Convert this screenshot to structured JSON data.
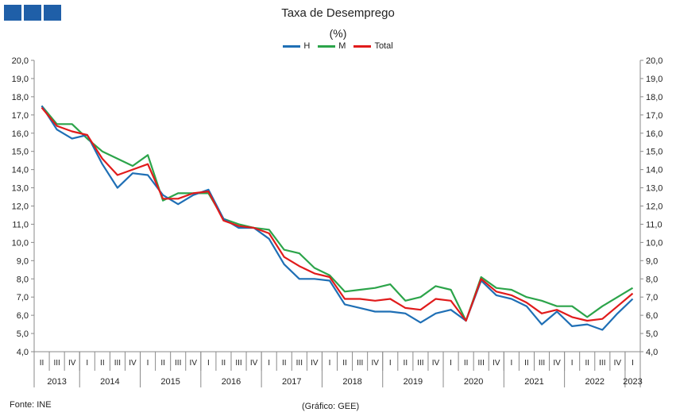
{
  "title": "Taxa de Desemprego",
  "subtitle": "(%)",
  "source": "Fonte: INE",
  "credit": "(Gráfico: GEE)",
  "colors": {
    "H": "#1f6fb5",
    "M": "#2ca44a",
    "Total": "#e01b1b",
    "axis": "#8a8a8a",
    "logo": "#1f5fa8"
  },
  "chart_data": {
    "type": "line",
    "title": "Taxa de Desemprego",
    "subtitle": "(%)",
    "ylim": [
      4.0,
      20.0
    ],
    "ytick_step": 1.0,
    "yticks_both_sides": true,
    "grid": false,
    "legend_position": "top-center",
    "x": [
      "2013 II",
      "2013 III",
      "2013 IV",
      "2014 I",
      "2014 II",
      "2014 III",
      "2014 IV",
      "2015 I",
      "2015 II",
      "2015 III",
      "2015 IV",
      "2016 I",
      "2016 II",
      "2016 III",
      "2016 IV",
      "2017 I",
      "2017 II",
      "2017 III",
      "2017 IV",
      "2018 I",
      "2018 II",
      "2018 III",
      "2018 IV",
      "2019 I",
      "2019 II",
      "2019 III",
      "2019 IV",
      "2020 I",
      "2020 II",
      "2020 III",
      "2020 IV",
      "2021 I",
      "2021 II",
      "2021 III",
      "2021 IV",
      "2022 I",
      "2022 II",
      "2022 III",
      "2022 IV",
      "2023 I"
    ],
    "quarter_labels": [
      "II",
      "III",
      "IV",
      "I",
      "II",
      "III",
      "IV",
      "I",
      "II",
      "III",
      "IV",
      "I",
      "II",
      "III",
      "IV",
      "I",
      "II",
      "III",
      "IV",
      "I",
      "II",
      "III",
      "IV",
      "I",
      "II",
      "III",
      "IV",
      "I",
      "II",
      "III",
      "IV",
      "I",
      "II",
      "III",
      "IV",
      "I",
      "II",
      "III",
      "IV",
      "I"
    ],
    "years": [
      "2013",
      "2014",
      "2015",
      "2016",
      "2017",
      "2018",
      "2019",
      "2020",
      "2021",
      "2022",
      "2023"
    ],
    "series": [
      {
        "name": "H",
        "values": [
          17.5,
          16.2,
          15.7,
          15.9,
          14.3,
          13.0,
          13.8,
          13.7,
          12.6,
          12.1,
          12.6,
          12.9,
          11.3,
          10.8,
          10.8,
          10.2,
          8.8,
          8.0,
          8.0,
          7.9,
          6.6,
          6.4,
          6.2,
          6.2,
          6.1,
          5.6,
          6.1,
          6.3,
          5.7,
          7.9,
          7.1,
          6.9,
          6.5,
          5.5,
          6.2,
          5.4,
          5.5,
          5.2,
          6.1,
          6.9
        ]
      },
      {
        "name": "M",
        "values": [
          17.5,
          16.5,
          16.5,
          15.7,
          15.0,
          14.6,
          14.2,
          14.8,
          12.3,
          12.7,
          12.7,
          12.7,
          11.3,
          11.0,
          10.8,
          10.7,
          9.6,
          9.4,
          8.6,
          8.2,
          7.3,
          7.4,
          7.5,
          7.7,
          6.8,
          7.0,
          7.6,
          7.4,
          5.7,
          8.1,
          7.5,
          7.4,
          7.0,
          6.8,
          6.5,
          6.5,
          5.9,
          6.5,
          7.0,
          7.5
        ]
      },
      {
        "name": "Total",
        "values": [
          17.4,
          16.4,
          16.1,
          15.9,
          14.6,
          13.7,
          14.0,
          14.3,
          12.4,
          12.4,
          12.7,
          12.8,
          11.2,
          10.9,
          10.8,
          10.5,
          9.2,
          8.7,
          8.3,
          8.1,
          6.9,
          6.9,
          6.8,
          6.9,
          6.4,
          6.3,
          6.9,
          6.8,
          5.7,
          8.0,
          7.3,
          7.1,
          6.7,
          6.1,
          6.3,
          5.9,
          5.7,
          5.8,
          6.5,
          7.2
        ]
      }
    ]
  }
}
